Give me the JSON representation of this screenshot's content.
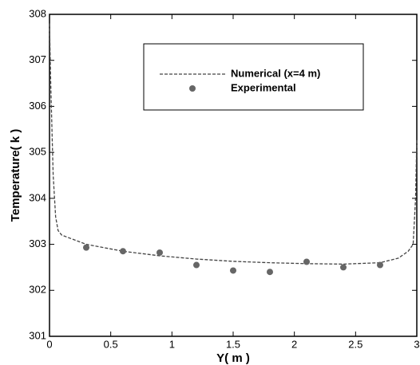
{
  "chart_data": {
    "type": "line",
    "xlabel": "Y( m )",
    "ylabel": "Temperature( k )",
    "xlim": [
      0,
      3
    ],
    "ylim": [
      301,
      308
    ],
    "xticks": [
      0,
      0.5,
      1,
      1.5,
      2,
      2.5,
      3
    ],
    "yticks": [
      301,
      302,
      303,
      304,
      305,
      306,
      307,
      308
    ],
    "series": [
      {
        "name": "Numerical (x=4 m)",
        "type": "line",
        "color": "#444444",
        "x": [
          0,
          0.01,
          0.03,
          0.05,
          0.07,
          0.1,
          0.3,
          0.6,
          0.9,
          1.2,
          1.5,
          1.8,
          2.1,
          2.4,
          2.7,
          2.85,
          2.93,
          2.97,
          2.99,
          3
        ],
        "values": [
          307.8,
          306.5,
          304.5,
          303.6,
          303.3,
          303.2,
          303.0,
          302.85,
          302.75,
          302.68,
          302.63,
          302.6,
          302.58,
          302.57,
          302.6,
          302.7,
          302.85,
          303.0,
          304,
          305.3
        ]
      },
      {
        "name": "Experimental",
        "type": "scatter",
        "color": "#666666",
        "x": [
          0.3,
          0.6,
          0.9,
          1.2,
          1.5,
          1.8,
          2.1,
          2.4,
          2.7
        ],
        "values": [
          302.93,
          302.85,
          302.82,
          302.55,
          302.43,
          302.4,
          302.62,
          302.5,
          302.55
        ]
      }
    ]
  }
}
